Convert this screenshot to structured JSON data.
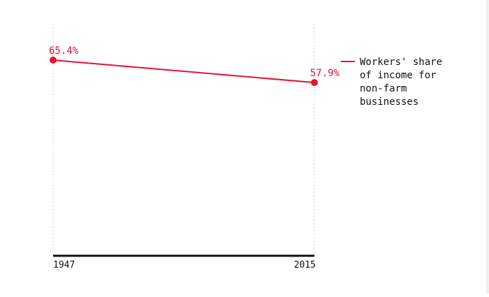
{
  "chart_data": {
    "type": "line",
    "x": [
      "1947",
      "2015"
    ],
    "series": [
      {
        "name": "Workers' share of income for non-farm businesses",
        "values": [
          65.4,
          57.9
        ],
        "color": "#e8112d"
      }
    ],
    "data_labels": [
      "65.4%",
      "57.9%"
    ],
    "legend_lines": [
      "Workers' share",
      "of income for",
      "non-farm",
      "businesses"
    ],
    "ylim": [
      0,
      70
    ],
    "grid": "vertical-dotted",
    "legend_position": "right"
  }
}
